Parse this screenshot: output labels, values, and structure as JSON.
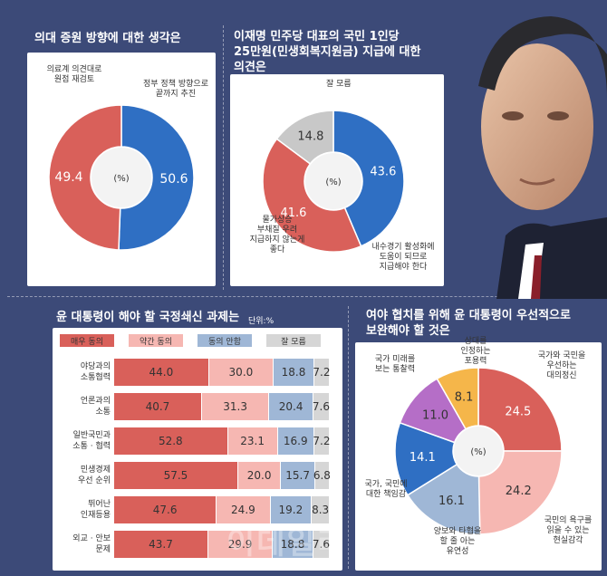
{
  "colors": {
    "background": "#3c4a78",
    "red": "#d9605a",
    "blue": "#2f6fc3",
    "gray": "#c8c8c8",
    "pink": "#f6b7b2",
    "steelblue": "#9fb7d6",
    "purple": "#b56ec7",
    "yellow": "#f5b64a",
    "lightgray": "#d6d6d6"
  },
  "watermark": "이데일리",
  "panel1": {
    "title": "의대 증원 방향에 대한 생각은",
    "center": "(%)",
    "labels": [
      {
        "lines": [
          "의료계 의견대로",
          "원점 재검토"
        ]
      },
      {
        "lines": [
          "정부 정책 방향으로",
          "끝까지 추진"
        ]
      }
    ]
  },
  "panel2": {
    "title_lines": [
      "이재명 민주당 대표의 국민 1인당",
      "25만원(민생회복지원금) 지급에 대한",
      "의견은"
    ],
    "center": "(%)",
    "labels": [
      {
        "lines": [
          "잘 모름"
        ]
      },
      {
        "lines": [
          "물가상승",
          "부채질 우려",
          "지급하지 않는게",
          "좋다"
        ]
      },
      {
        "lines": [
          "내수경기 활성화에",
          "도움이 되므로",
          "지급해야 한다"
        ]
      }
    ]
  },
  "panel3": {
    "title": "윤 대통령이 해야 할 국정쇄신 과제는",
    "unit": "단위:%",
    "legend": [
      "매우 동의",
      "약간 동의",
      "동의 안함",
      "잘 모름"
    ],
    "rows": [
      {
        "lines": [
          "야당과의",
          "소통협력"
        ]
      },
      {
        "lines": [
          "언론과의",
          "소통"
        ]
      },
      {
        "lines": [
          "일반국민과",
          "소통 · 협력"
        ]
      },
      {
        "lines": [
          "민생경제",
          "우선 순위"
        ]
      },
      {
        "lines": [
          "뛰어난",
          "인재등용"
        ]
      },
      {
        "lines": [
          "외교 · 안보",
          "문제"
        ]
      }
    ]
  },
  "panel4": {
    "title_lines": [
      "여야 협치를 위해 윤 대통령이 우선적으로",
      "보완해야 할 것은"
    ],
    "center": "(%)",
    "labels": [
      {
        "lines": [
          "상대를",
          "인정하는",
          "포용력"
        ]
      },
      {
        "lines": [
          "국가와 국민을",
          "우선하는",
          "대의정신"
        ]
      },
      {
        "lines": [
          "국가 미래를",
          "보는 통찰력"
        ]
      },
      {
        "lines": [
          "국가, 국민에",
          "대한 책임감"
        ]
      },
      {
        "lines": [
          "양보와 타협을",
          "할 줄 아는",
          "유연성"
        ]
      },
      {
        "lines": [
          "국민의 욕구를",
          "읽을 수 있는",
          "현실감각"
        ]
      }
    ]
  },
  "chart_data": [
    {
      "type": "pie",
      "title": "의대 증원 방향에 대한 생각은",
      "unit": "%",
      "slices": [
        {
          "label": "의료계 의견대로 원점 재검토",
          "value": 49.4,
          "color": "#d9605a"
        },
        {
          "label": "정부 정책 방향으로 끝까지 추진",
          "value": 50.6,
          "color": "#2f6fc3"
        }
      ]
    },
    {
      "type": "pie",
      "title": "이재명 민주당 대표의 국민 1인당 25만원(민생회복지원금) 지급에 대한 의견은",
      "unit": "%",
      "slices": [
        {
          "label": "내수경기 활성화에 도움이 되므로 지급해야 한다",
          "value": 43.6,
          "color": "#2f6fc3"
        },
        {
          "label": "물가상승 부채질 우려 지급하지 않는게 좋다",
          "value": 41.6,
          "color": "#d9605a"
        },
        {
          "label": "잘 모름",
          "value": 14.8,
          "color": "#c8c8c8"
        }
      ]
    },
    {
      "type": "bar",
      "orientation": "horizontal",
      "stacked": true,
      "title": "윤 대통령이 해야 할 국정쇄신 과제는",
      "unit": "단위:%",
      "categories": [
        "야당과의 소통협력",
        "언론과의 소통",
        "일반국민과 소통 · 협력",
        "민생경제 우선 순위",
        "뛰어난 인재등용",
        "외교 · 안보 문제"
      ],
      "series": [
        {
          "name": "매우 동의",
          "color": "#d9605a",
          "values": [
            44.0,
            40.7,
            52.8,
            57.5,
            47.6,
            43.7
          ]
        },
        {
          "name": "약간 동의",
          "color": "#f6b7b2",
          "values": [
            30.0,
            31.3,
            23.1,
            20.0,
            24.9,
            29.9
          ]
        },
        {
          "name": "동의 안함",
          "color": "#9fb7d6",
          "values": [
            18.8,
            20.4,
            16.9,
            15.7,
            19.2,
            18.8
          ]
        },
        {
          "name": "잘 모름",
          "color": "#d6d6d6",
          "values": [
            7.2,
            7.6,
            7.2,
            6.8,
            8.3,
            7.6
          ]
        }
      ]
    },
    {
      "type": "pie",
      "title": "여야 협치를 위해 윤 대통령이 우선적으로 보완해야 할 것은",
      "unit": "%",
      "slices": [
        {
          "label": "국가와 국민을 우선하는 대의정신",
          "value": 24.5,
          "color": "#d9605a"
        },
        {
          "label": "국민의 욕구를 읽을 수 있는 현실감각",
          "value": 24.2,
          "color": "#f6b7b2"
        },
        {
          "label": "양보와 타협을 할 줄 아는 유연성",
          "value": 16.1,
          "color": "#9fb7d6"
        },
        {
          "label": "국가, 국민에 대한 책임감",
          "value": 14.1,
          "color": "#2f6fc3"
        },
        {
          "label": "국가 미래를 보는 통찰력",
          "value": 11.0,
          "color": "#b56ec7"
        },
        {
          "label": "상대를 인정하는 포용력",
          "value": 8.1,
          "color": "#f5b64a"
        }
      ]
    }
  ]
}
